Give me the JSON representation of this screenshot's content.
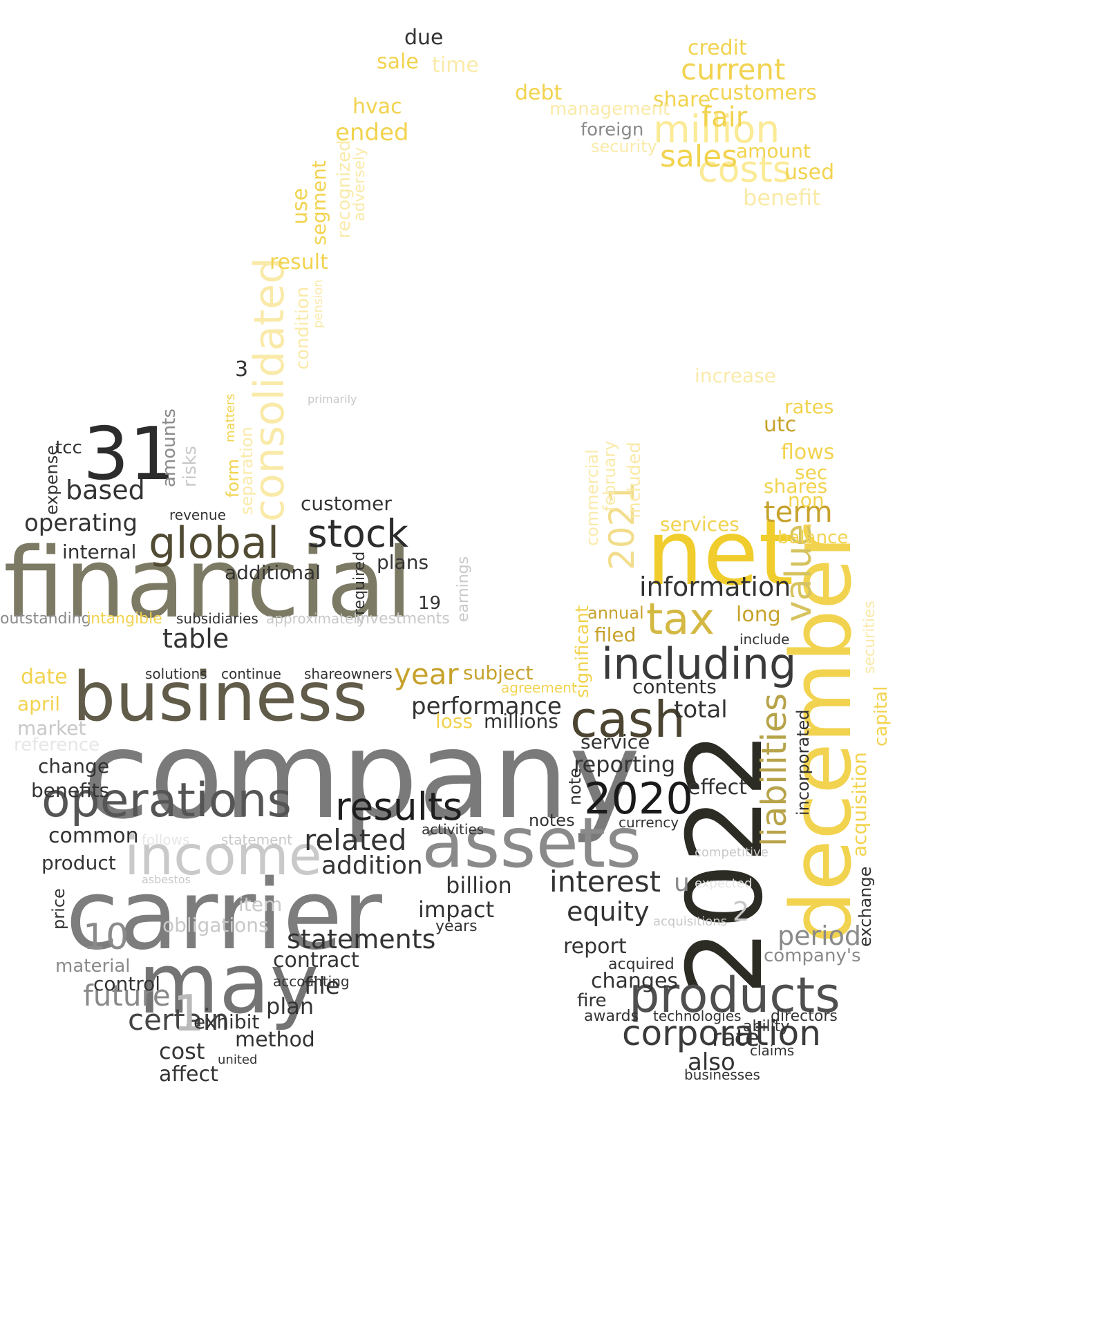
{
  "words": [
    {
      "t": "company",
      "c": "#7a7a7a"
    },
    {
      "t": "financial",
      "c": "#7c7a64"
    },
    {
      "t": "carrier",
      "c": "#7d7d7d"
    },
    {
      "t": "2022",
      "c": "#2c2b24"
    },
    {
      "t": "december",
      "c": "#f2d34f"
    },
    {
      "t": "business",
      "c": "#615b49"
    },
    {
      "t": "net",
      "c": "#f0cd2c"
    },
    {
      "t": "may",
      "c": "#747474"
    },
    {
      "t": "assets",
      "c": "#8a8a8a"
    },
    {
      "t": "income",
      "c": "#c9c9c9"
    },
    {
      "t": "operations",
      "c": "#555555"
    },
    {
      "t": "31",
      "c": "#2c2c2c"
    },
    {
      "t": "million",
      "c": "#fbea96"
    },
    {
      "t": "consolidated",
      "c": "#faeaa9"
    },
    {
      "t": "products",
      "c": "#4f4f4f"
    },
    {
      "t": "global",
      "c": "#514b33"
    },
    {
      "t": "stock",
      "c": "#2c2c2c"
    },
    {
      "t": "results",
      "c": "#1e1e1e"
    },
    {
      "t": "cash",
      "c": "#4a4430"
    },
    {
      "t": "including",
      "c": "#3a3a3a"
    },
    {
      "t": "tax",
      "c": "#d3b842"
    },
    {
      "t": "2020",
      "c": "#1a1a1a"
    },
    {
      "t": "corporation",
      "c": "#3b3b3b"
    },
    {
      "t": "liabilities",
      "c": "#b7a34a"
    },
    {
      "t": "value",
      "c": "#d6c35f"
    },
    {
      "t": "2021",
      "c": "#f2dd8c"
    },
    {
      "t": "costs",
      "c": "#fbea96"
    },
    {
      "t": "sales",
      "c": "#f2d34f"
    },
    {
      "t": "current",
      "c": "#f2d34f"
    },
    {
      "t": "customers",
      "c": "#f2d34f"
    },
    {
      "t": "fair",
      "c": "#f2d34f"
    },
    {
      "t": "interest",
      "c": "#333333"
    },
    {
      "t": "certain",
      "c": "#444444"
    },
    {
      "t": "future",
      "c": "#898989"
    },
    {
      "t": "statements",
      "c": "#333333"
    },
    {
      "t": "related",
      "c": "#333333"
    },
    {
      "t": "addition",
      "c": "#333333"
    },
    {
      "t": "information",
      "c": "#333333"
    },
    {
      "t": "performance",
      "c": "#333333"
    },
    {
      "t": "table",
      "c": "#333333"
    },
    {
      "t": "equity",
      "c": "#333333"
    },
    {
      "t": "year",
      "c": "#c7a22c"
    },
    {
      "t": "term",
      "c": "#c7a22c"
    },
    {
      "t": "period",
      "c": "#8a8a8a"
    },
    {
      "t": "10",
      "c": "#8a8a8a"
    },
    {
      "t": "1",
      "c": "#b9b9b9"
    },
    {
      "t": "based",
      "c": "#333333"
    },
    {
      "t": "operating",
      "c": "#333333"
    },
    {
      "t": "billion",
      "c": "#333333"
    },
    {
      "t": "impact",
      "c": "#333333"
    },
    {
      "t": "file",
      "c": "#333333"
    },
    {
      "t": "plan",
      "c": "#333333"
    },
    {
      "t": "contract",
      "c": "#333333"
    },
    {
      "t": "exhibit",
      "c": "#333333"
    },
    {
      "t": "method",
      "c": "#333333"
    },
    {
      "t": "cost",
      "c": "#333333"
    },
    {
      "t": "affect",
      "c": "#333333"
    },
    {
      "t": "effect",
      "c": "#333333"
    },
    {
      "t": "also",
      "c": "#333333"
    },
    {
      "t": "rate",
      "c": "#333333"
    },
    {
      "t": "report",
      "c": "#333333"
    },
    {
      "t": "changes",
      "c": "#333333"
    },
    {
      "t": "reporting",
      "c": "#333333"
    },
    {
      "t": "total",
      "c": "#333333"
    },
    {
      "t": "contents",
      "c": "#333333"
    },
    {
      "t": "service",
      "c": "#333333"
    },
    {
      "t": "common",
      "c": "#333333"
    },
    {
      "t": "product",
      "c": "#333333"
    },
    {
      "t": "change",
      "c": "#333333"
    },
    {
      "t": "benefits",
      "c": "#333333"
    },
    {
      "t": "control",
      "c": "#333333"
    },
    {
      "t": "market",
      "c": "#c8c8c8"
    },
    {
      "t": "reference",
      "c": "#e6e6e6"
    },
    {
      "t": "date",
      "c": "#f2d34f"
    },
    {
      "t": "april",
      "c": "#f2d34f"
    },
    {
      "t": "plans",
      "c": "#333333"
    },
    {
      "t": "additional",
      "c": "#333333"
    },
    {
      "t": "internal",
      "c": "#333333"
    },
    {
      "t": "customer",
      "c": "#333333"
    },
    {
      "t": "obligations",
      "c": "#c8c8c8"
    },
    {
      "t": "item",
      "c": "#c8c8c8"
    },
    {
      "t": "material",
      "c": "#8a8a8a"
    },
    {
      "t": "company's",
      "c": "#8a8a8a"
    },
    {
      "t": "directors",
      "c": "#333333"
    },
    {
      "t": "technologies",
      "c": "#333333"
    },
    {
      "t": "businesses",
      "c": "#333333"
    },
    {
      "t": "claims",
      "c": "#333333"
    },
    {
      "t": "ability",
      "c": "#333333"
    },
    {
      "t": "ended",
      "c": "#f2d34f"
    },
    {
      "t": "hvac",
      "c": "#f2d34f"
    },
    {
      "t": "sale",
      "c": "#f2d34f"
    },
    {
      "t": "due",
      "c": "#333333"
    },
    {
      "t": "time",
      "c": "#faeaa9"
    },
    {
      "t": "result",
      "c": "#f2d34f"
    },
    {
      "t": "use",
      "c": "#f2d34f"
    },
    {
      "t": "segment",
      "c": "#f2d34f"
    },
    {
      "t": "debt",
      "c": "#f2d34f"
    },
    {
      "t": "share",
      "c": "#f2d34f"
    },
    {
      "t": "credit",
      "c": "#f2d34f"
    },
    {
      "t": "amount",
      "c": "#f2d34f"
    },
    {
      "t": "used",
      "c": "#f2d34f"
    },
    {
      "t": "benefit",
      "c": "#faeaa9"
    },
    {
      "t": "management",
      "c": "#faeaa9"
    },
    {
      "t": "foreign",
      "c": "#8a8a8a"
    },
    {
      "t": "security",
      "c": "#faeaa9"
    },
    {
      "t": "increase",
      "c": "#faeaa9"
    },
    {
      "t": "rates",
      "c": "#f2d34f"
    },
    {
      "t": "utc",
      "c": "#c7a22c"
    },
    {
      "t": "flows",
      "c": "#f2d34f"
    },
    {
      "t": "sec",
      "c": "#f2d34f"
    },
    {
      "t": "shares",
      "c": "#f2d34f"
    },
    {
      "t": "non",
      "c": "#f2d34f"
    },
    {
      "t": "balance",
      "c": "#f2d34f"
    },
    {
      "t": "services",
      "c": "#f2d34f"
    },
    {
      "t": "long",
      "c": "#c7a22c"
    },
    {
      "t": "filed",
      "c": "#c7a22c"
    },
    {
      "t": "annual",
      "c": "#c7a22c"
    },
    {
      "t": "include",
      "c": "#333333"
    },
    {
      "t": "acquisition",
      "c": "#f2d34f"
    },
    {
      "t": "capital",
      "c": "#f2d34f"
    },
    {
      "t": "exchange",
      "c": "#333333"
    },
    {
      "t": "incorporated",
      "c": "#333333"
    },
    {
      "t": "subsidiaries",
      "c": "#333333"
    },
    {
      "t": "approximately",
      "c": "#c8c8c8"
    },
    {
      "t": "investments",
      "c": "#c8c8c8"
    },
    {
      "t": "outstanding",
      "c": "#8a8a8a"
    },
    {
      "t": "intangible",
      "c": "#f2d34f"
    },
    {
      "t": "millions",
      "c": "#333333"
    },
    {
      "t": "loss",
      "c": "#f2d34f"
    },
    {
      "t": "subject",
      "c": "#c7a22c"
    },
    {
      "t": "agreement",
      "c": "#f2d34f"
    },
    {
      "t": "shareowners",
      "c": "#333333"
    },
    {
      "t": "continue",
      "c": "#333333"
    },
    {
      "t": "solutions",
      "c": "#333333"
    },
    {
      "t": "revenue",
      "c": "#333333"
    },
    {
      "t": "amounts",
      "c": "#8a8a8a"
    },
    {
      "t": "risks",
      "c": "#c8c8c8"
    },
    {
      "t": "tcc",
      "c": "#333333"
    },
    {
      "t": "expense",
      "c": "#333333"
    },
    {
      "t": "form",
      "c": "#f2d34f"
    },
    {
      "t": "separation",
      "c": "#faeaa9"
    },
    {
      "t": "condition",
      "c": "#faeaa9"
    },
    {
      "t": "recognized",
      "c": "#faeaa9"
    },
    {
      "t": "adversely",
      "c": "#faeaa9"
    },
    {
      "t": "significant",
      "c": "#f2d34f"
    },
    {
      "t": "included",
      "c": "#faeaa9"
    },
    {
      "t": "february",
      "c": "#faeaa9"
    },
    {
      "t": "commercial",
      "c": "#faeaa9"
    },
    {
      "t": "securities",
      "c": "#faeaa9"
    },
    {
      "t": "notes",
      "c": "#333333"
    },
    {
      "t": "note",
      "c": "#333333"
    },
    {
      "t": "fire",
      "c": "#333333"
    },
    {
      "t": "acquired",
      "c": "#333333"
    },
    {
      "t": "awards",
      "c": "#333333"
    },
    {
      "t": "currency",
      "c": "#333333"
    },
    {
      "t": "years",
      "c": "#333333"
    },
    {
      "t": "price",
      "c": "#333333"
    },
    {
      "t": "accounting",
      "c": "#333333"
    },
    {
      "t": "activities",
      "c": "#333333"
    },
    {
      "t": "united",
      "c": "#333333"
    },
    {
      "t": "required",
      "c": "#333333"
    },
    {
      "t": "earnings",
      "c": "#c8c8c8"
    },
    {
      "t": "19",
      "c": "#333333"
    },
    {
      "t": "u",
      "c": "#8a8a8a"
    },
    {
      "t": "2",
      "c": "#c8c8c8"
    },
    {
      "t": "3",
      "c": "#333333"
    },
    {
      "t": "primarily",
      "c": "#c8c8c8"
    },
    {
      "t": "pension",
      "c": "#faeaa9"
    },
    {
      "t": "matters",
      "c": "#f2d34f"
    },
    {
      "t": "statement",
      "c": "#c8c8c8"
    },
    {
      "t": "asbestos",
      "c": "#c8c8c8"
    },
    {
      "t": "follows",
      "c": "#e6e6e6"
    },
    {
      "t": "acquisitions",
      "c": "#c8c8c8"
    },
    {
      "t": "competitive",
      "c": "#c8c8c8"
    },
    {
      "t": "expected",
      "c": "#e6e6e6"
    }
  ]
}
